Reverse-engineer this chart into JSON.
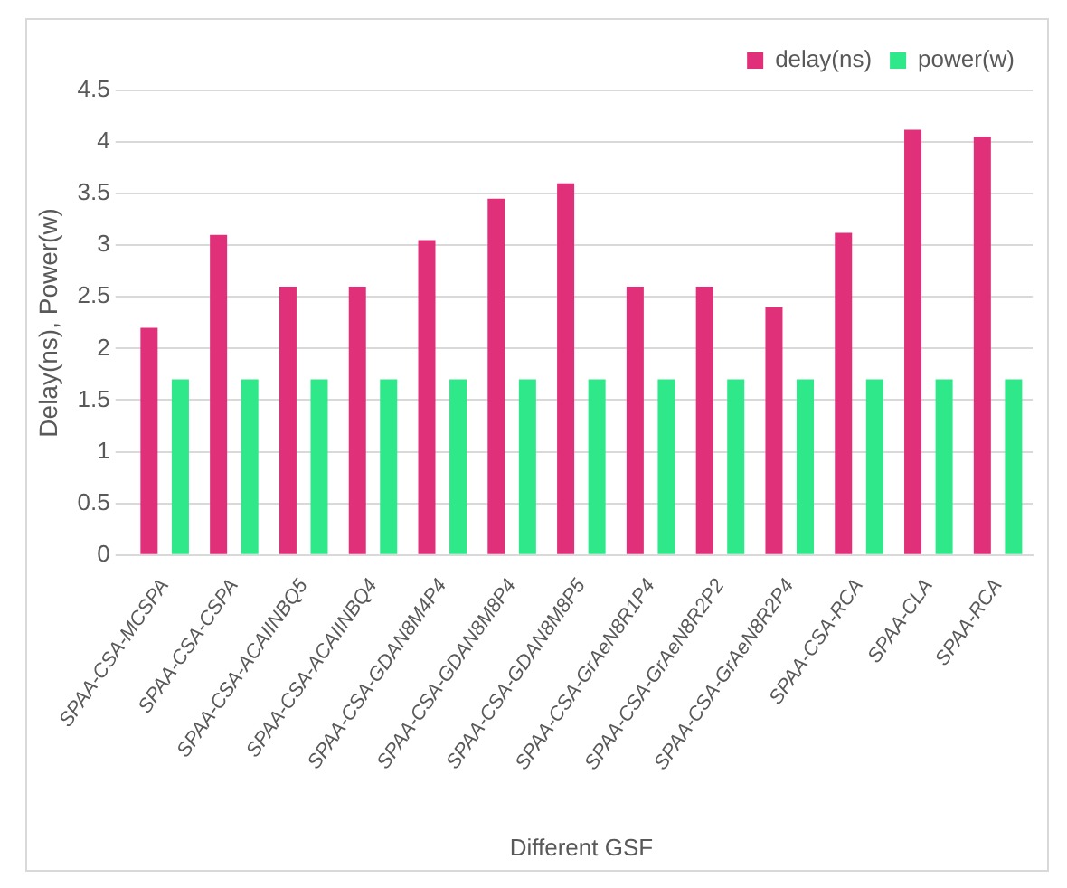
{
  "chart_data": {
    "type": "bar",
    "xlabel": "Different GSF",
    "ylabel": "Delay(ns), Power(w)",
    "categories": [
      "SPAA-CSA-MCSPA",
      "SPAA-CSA-CSPA",
      "SPAA-CSA-ACAIINBQ5",
      "SPAA-CSA-ACAIINBQ4",
      "SPAA-CSA-GDAN8M4P4",
      "SPAA-CSA-GDAN8M8P4",
      "SPAA-CSA-GDAN8M8P5",
      "SPAA-CSA-GrAeN8R1P4",
      "SPAA-CSA-GrAeN8R2P2",
      "SPAA-CSA-GrAeN8R2P4",
      "SPAA-CSA-RCA",
      "SPAA-CLA",
      "SPAA-RCA"
    ],
    "series": [
      {
        "name": "delay(ns)",
        "color": "#e0307a",
        "values": [
          2.2,
          3.1,
          2.6,
          2.6,
          3.05,
          3.45,
          3.6,
          2.6,
          2.6,
          2.4,
          3.12,
          4.12,
          4.05
        ]
      },
      {
        "name": "power(w)",
        "color": "#2ee88a",
        "values": [
          1.7,
          1.7,
          1.7,
          1.7,
          1.7,
          1.7,
          1.7,
          1.7,
          1.7,
          1.7,
          1.7,
          1.7,
          1.7
        ]
      }
    ],
    "ylim": [
      0,
      4.5
    ],
    "yticks": [
      0,
      0.5,
      1,
      1.5,
      2,
      2.5,
      3,
      3.5,
      4,
      4.5
    ],
    "grid": "y",
    "legend": "top right"
  }
}
